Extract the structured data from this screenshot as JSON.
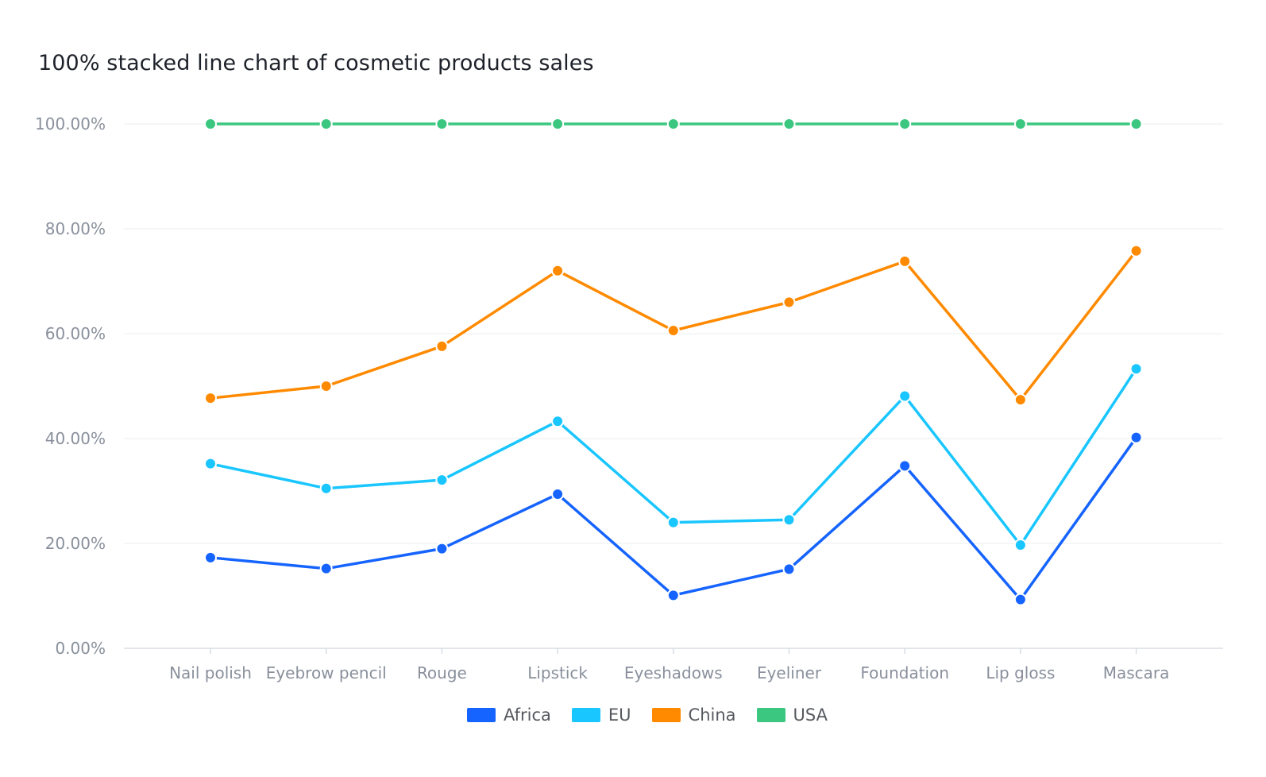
{
  "chart_data": {
    "type": "line",
    "title": "100% stacked line chart of cosmetic products sales",
    "categories": [
      "Nail polish",
      "Eyebrow pencil",
      "Rouge",
      "Lipstick",
      "Eyeshadows",
      "Eyeliner",
      "Foundation",
      "Lip gloss",
      "Mascara"
    ],
    "y_ticks": [
      "0.00%",
      "20.00%",
      "40.00%",
      "60.00%",
      "80.00%",
      "100.00%"
    ],
    "ylim": [
      0,
      100
    ],
    "grid": true,
    "legend_position": "bottom",
    "series": [
      {
        "name": "Africa",
        "color": "#1664ff",
        "values": [
          17.3,
          15.2,
          19.0,
          29.4,
          10.1,
          15.1,
          34.8,
          9.3,
          40.2
        ]
      },
      {
        "name": "EU",
        "color": "#1ac6ff",
        "values": [
          35.2,
          30.5,
          32.1,
          43.3,
          24.0,
          24.5,
          48.1,
          19.7,
          53.3
        ]
      },
      {
        "name": "China",
        "color": "#ff8a00",
        "values": [
          47.7,
          50.0,
          57.6,
          72.0,
          60.6,
          66.0,
          73.8,
          47.4,
          75.8
        ]
      },
      {
        "name": "USA",
        "color": "#3cc780",
        "values": [
          100,
          100,
          100,
          100,
          100,
          100,
          100,
          100,
          100
        ]
      }
    ]
  }
}
